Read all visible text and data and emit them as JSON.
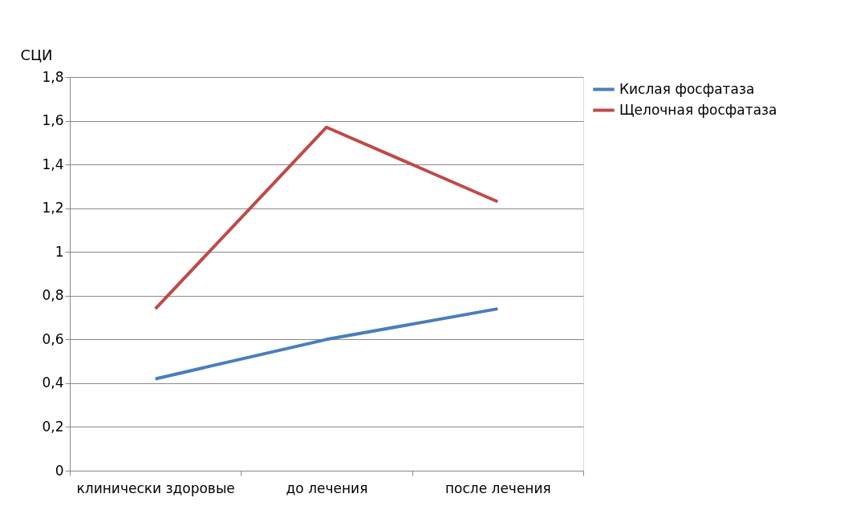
{
  "chart_data": {
    "type": "line",
    "ylabel": "СЦИ",
    "categories": [
      "клинически здоровые",
      "до лечения",
      "после лечения"
    ],
    "series": [
      {
        "name": "Кислая фосфатаза",
        "color": "#4a7ebb",
        "values": [
          0.42,
          0.6,
          0.74
        ]
      },
      {
        "name": "Щелочная фосфатаза",
        "color": "#be4b48",
        "values": [
          0.74,
          1.57,
          1.23
        ]
      }
    ],
    "ylim": [
      0,
      1.8
    ],
    "yticks": [
      0,
      {
        "value": 0.2,
        "label": "0,2"
      },
      {
        "value": 0.4,
        "label": "0,4"
      },
      {
        "value": 0.6,
        "label": "0,6"
      },
      {
        "value": 0.8,
        "label": "0,8"
      },
      1,
      {
        "value": 1.2,
        "label": "1,2"
      },
      {
        "value": 1.4,
        "label": "1,4"
      },
      {
        "value": 1.6,
        "label": "1,6"
      },
      {
        "value": 1.8,
        "label": "1,8"
      }
    ],
    "grid": "y",
    "legend": "right",
    "marker": "none",
    "line_style": "solid"
  }
}
